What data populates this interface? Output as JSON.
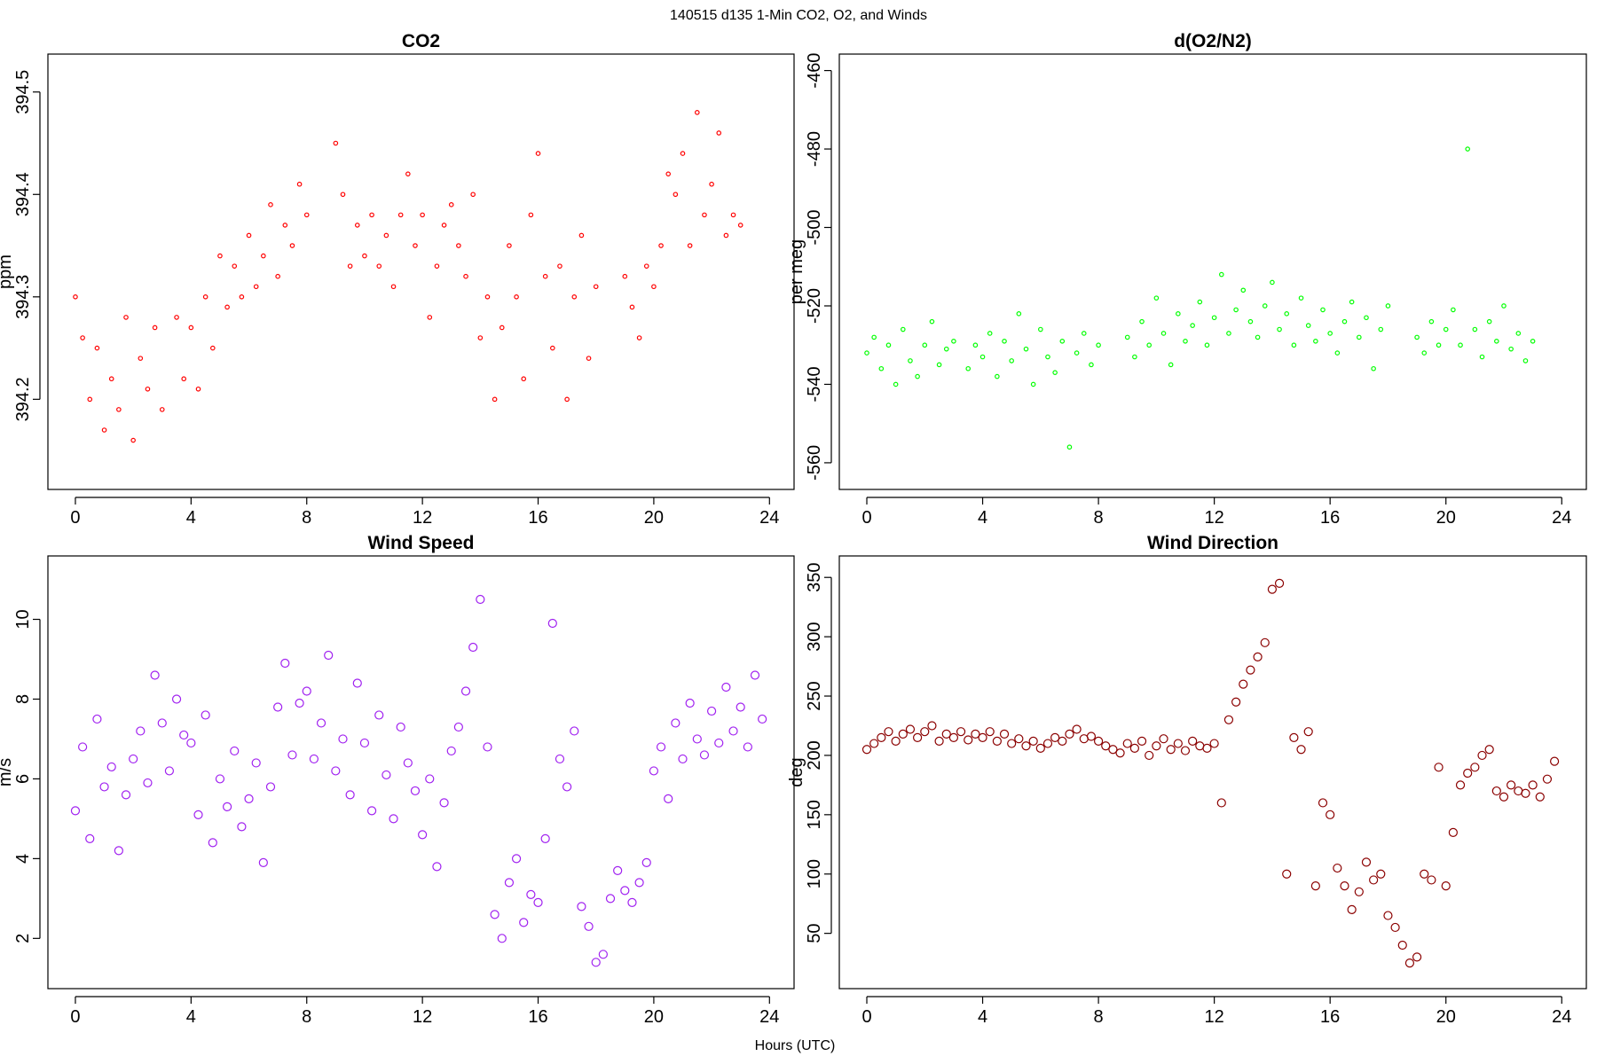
{
  "title": "140515   d135   1-Min CO2, O2, and Winds",
  "xlabel": "Hours (UTC)",
  "chart_data": [
    {
      "type": "scatter",
      "title": "CO2",
      "ylabel": "ppm",
      "color": "#ff0000",
      "marker_size": 2.2,
      "xlim": [
        -0.95,
        24.85
      ],
      "xticks": [
        0,
        4,
        8,
        12,
        16,
        20,
        24
      ],
      "ylim": [
        394.112,
        394.537
      ],
      "yticks": [
        394.2,
        394.3,
        394.4,
        394.5
      ],
      "x": [
        0,
        0.25,
        0.5,
        0.75,
        1,
        1.25,
        1.5,
        1.75,
        2,
        2.25,
        2.5,
        2.75,
        3,
        3.5,
        3.75,
        4,
        4.25,
        4.5,
        4.75,
        5,
        5.25,
        5.5,
        5.75,
        6,
        6.25,
        6.5,
        6.75,
        7,
        7.25,
        7.5,
        7.75,
        8,
        9,
        9.25,
        9.5,
        9.75,
        10,
        10.25,
        10.5,
        10.75,
        11,
        11.25,
        11.5,
        11.75,
        12,
        12.25,
        12.5,
        12.75,
        13,
        13.25,
        13.5,
        13.75,
        14,
        14.25,
        14.5,
        14.75,
        15,
        15.25,
        15.5,
        15.75,
        16,
        16.25,
        16.5,
        16.75,
        17,
        17.25,
        17.5,
        17.75,
        18,
        19,
        19.25,
        19.5,
        19.75,
        20,
        20.25,
        20.5,
        20.75,
        21,
        21.25,
        21.5,
        21.75,
        22,
        22.25,
        22.5,
        22.75,
        23
      ],
      "values": [
        394.3,
        394.26,
        394.2,
        394.25,
        394.17,
        394.22,
        394.19,
        394.28,
        394.16,
        394.24,
        394.21,
        394.27,
        394.19,
        394.28,
        394.22,
        394.27,
        394.21,
        394.3,
        394.25,
        394.34,
        394.29,
        394.33,
        394.3,
        394.36,
        394.31,
        394.34,
        394.39,
        394.32,
        394.37,
        394.35,
        394.41,
        394.38,
        394.45,
        394.4,
        394.33,
        394.37,
        394.34,
        394.38,
        394.33,
        394.36,
        394.31,
        394.38,
        394.42,
        394.35,
        394.38,
        394.28,
        394.33,
        394.37,
        394.39,
        394.35,
        394.32,
        394.4,
        394.26,
        394.3,
        394.2,
        394.27,
        394.35,
        394.3,
        394.22,
        394.38,
        394.44,
        394.32,
        394.25,
        394.33,
        394.2,
        394.3,
        394.36,
        394.24,
        394.31,
        394.32,
        394.29,
        394.26,
        394.33,
        394.31,
        394.35,
        394.42,
        394.4,
        394.44,
        394.35,
        394.48,
        394.38,
        394.41,
        394.46,
        394.36,
        394.38,
        394.37
      ]
    },
    {
      "type": "scatter",
      "title": "d(O2/N2)",
      "ylabel": "per meg",
      "color": "#00ff00",
      "marker_size": 2.2,
      "xlim": [
        -0.95,
        24.85
      ],
      "xticks": [
        0,
        4,
        8,
        12,
        16,
        20,
        24
      ],
      "ylim": [
        -566.8,
        -455.8
      ],
      "yticks": [
        -560,
        -540,
        -520,
        -500,
        -480,
        -460
      ],
      "x": [
        0,
        0.25,
        0.5,
        0.75,
        1,
        1.25,
        1.5,
        1.75,
        2,
        2.25,
        2.5,
        2.75,
        3,
        3.5,
        3.75,
        4,
        4.25,
        4.5,
        4.75,
        5,
        5.25,
        5.5,
        5.75,
        6,
        6.25,
        6.5,
        6.75,
        7,
        7.25,
        7.5,
        7.75,
        8,
        9,
        9.25,
        9.5,
        9.75,
        10,
        10.25,
        10.5,
        10.75,
        11,
        11.25,
        11.5,
        11.75,
        12,
        12.25,
        12.5,
        12.75,
        13,
        13.25,
        13.5,
        13.75,
        14,
        14.25,
        14.5,
        14.75,
        15,
        15.25,
        15.5,
        15.75,
        16,
        16.25,
        16.5,
        16.75,
        17,
        17.25,
        17.5,
        17.75,
        18,
        19,
        19.25,
        19.5,
        19.75,
        20,
        20.25,
        20.5,
        20.75,
        21,
        21.25,
        21.5,
        21.75,
        22,
        22.25,
        22.5,
        22.75,
        23
      ],
      "values": [
        -532,
        -528,
        -536,
        -530,
        -540,
        -526,
        -534,
        -538,
        -530,
        -524,
        -535,
        -531,
        -529,
        -536,
        -530,
        -533,
        -527,
        -538,
        -529,
        -534,
        -522,
        -531,
        -540,
        -526,
        -533,
        -537,
        -529,
        -556,
        -532,
        -527,
        -535,
        -530,
        -528,
        -533,
        -524,
        -530,
        -518,
        -527,
        -535,
        -522,
        -529,
        -525,
        -519,
        -530,
        -523,
        -512,
        -527,
        -521,
        -516,
        -524,
        -528,
        -520,
        -514,
        -526,
        -522,
        -530,
        -518,
        -525,
        -529,
        -521,
        -527,
        -532,
        -524,
        -519,
        -528,
        -523,
        -536,
        -526,
        -520,
        -528,
        -532,
        -524,
        -530,
        -526,
        -521,
        -530,
        -480,
        -526,
        -533,
        -524,
        -529,
        -520,
        -531,
        -527,
        -534,
        -529
      ]
    },
    {
      "type": "scatter",
      "title": "Wind Speed",
      "ylabel": "m/s",
      "color": "#a020f0",
      "marker_size": 4.5,
      "xlim": [
        -0.95,
        24.85
      ],
      "xticks": [
        0,
        4,
        8,
        12,
        16,
        20,
        24
      ],
      "ylim": [
        0.74,
        11.59
      ],
      "yticks": [
        2,
        4,
        6,
        8,
        10
      ],
      "x": [
        0,
        0.25,
        0.5,
        0.75,
        1,
        1.25,
        1.5,
        1.75,
        2,
        2.25,
        2.5,
        2.75,
        3,
        3.25,
        3.5,
        3.75,
        4,
        4.25,
        4.5,
        4.75,
        5,
        5.25,
        5.5,
        5.75,
        6,
        6.25,
        6.5,
        6.75,
        7,
        7.25,
        7.5,
        7.75,
        8,
        8.25,
        8.5,
        8.75,
        9,
        9.25,
        9.5,
        9.75,
        10,
        10.25,
        10.5,
        10.75,
        11,
        11.25,
        11.5,
        11.75,
        12,
        12.25,
        12.5,
        12.75,
        13,
        13.25,
        13.5,
        13.75,
        14,
        14.25,
        14.5,
        14.75,
        15,
        15.25,
        15.5,
        15.75,
        16,
        16.25,
        16.5,
        16.75,
        17,
        17.25,
        17.5,
        17.75,
        18,
        18.25,
        18.5,
        18.75,
        19,
        19.25,
        19.5,
        19.75,
        20,
        20.25,
        20.5,
        20.75,
        21,
        21.25,
        21.5,
        21.75,
        22,
        22.25,
        22.5,
        22.75,
        23,
        23.25,
        23.5,
        23.75
      ],
      "values": [
        5.2,
        6.8,
        4.5,
        7.5,
        5.8,
        6.3,
        4.2,
        5.6,
        6.5,
        7.2,
        5.9,
        8.6,
        7.4,
        6.2,
        8.0,
        7.1,
        6.9,
        5.1,
        7.6,
        4.4,
        6.0,
        5.3,
        6.7,
        4.8,
        5.5,
        6.4,
        3.9,
        5.8,
        7.8,
        8.9,
        6.6,
        7.9,
        8.2,
        6.5,
        7.4,
        9.1,
        6.2,
        7.0,
        5.6,
        8.4,
        6.9,
        5.2,
        7.6,
        6.1,
        5.0,
        7.3,
        6.4,
        5.7,
        4.6,
        6.0,
        3.8,
        5.4,
        6.7,
        7.3,
        8.2,
        9.3,
        10.5,
        6.8,
        2.6,
        2.0,
        3.4,
        4.0,
        2.4,
        3.1,
        2.9,
        4.5,
        9.9,
        6.5,
        5.8,
        7.2,
        2.8,
        2.3,
        1.4,
        1.6,
        3.0,
        3.7,
        3.2,
        2.9,
        3.4,
        3.9,
        6.2,
        6.8,
        5.5,
        7.4,
        6.5,
        7.9,
        7.0,
        6.6,
        7.7,
        6.9,
        8.3,
        7.2,
        7.8,
        6.8,
        8.6,
        7.5
      ]
    },
    {
      "type": "scatter",
      "title": "Wind Direction",
      "ylabel": "deg",
      "color": "#8b0000",
      "marker_size": 4.5,
      "xlim": [
        -0.95,
        24.85
      ],
      "xticks": [
        0,
        4,
        8,
        12,
        16,
        20,
        24
      ],
      "ylim": [
        3.4,
        368.1
      ],
      "yticks": [
        50,
        100,
        150,
        200,
        250,
        300,
        350
      ],
      "x": [
        0,
        0.25,
        0.5,
        0.75,
        1,
        1.25,
        1.5,
        1.75,
        2,
        2.25,
        2.5,
        2.75,
        3,
        3.25,
        3.5,
        3.75,
        4,
        4.25,
        4.5,
        4.75,
        5,
        5.25,
        5.5,
        5.75,
        6,
        6.25,
        6.5,
        6.75,
        7,
        7.25,
        7.5,
        7.75,
        8,
        8.25,
        8.5,
        8.75,
        9,
        9.25,
        9.5,
        9.75,
        10,
        10.25,
        10.5,
        10.75,
        11,
        11.25,
        11.5,
        11.75,
        12,
        12.25,
        12.5,
        12.75,
        13,
        13.25,
        13.5,
        13.75,
        14,
        14.25,
        14.5,
        14.75,
        15,
        15.25,
        15.5,
        15.75,
        16,
        16.25,
        16.5,
        16.75,
        17,
        17.25,
        17.5,
        17.75,
        18,
        18.25,
        18.5,
        18.75,
        19,
        19.25,
        19.5,
        19.75,
        20,
        20.25,
        20.5,
        20.75,
        21,
        21.25,
        21.5,
        21.75,
        22,
        22.25,
        22.5,
        22.75,
        23,
        23.25,
        23.5,
        23.75
      ],
      "values": [
        205,
        210,
        215,
        220,
        212,
        218,
        222,
        215,
        220,
        225,
        212,
        218,
        215,
        220,
        213,
        218,
        215,
        220,
        212,
        218,
        210,
        214,
        208,
        212,
        206,
        210,
        215,
        212,
        218,
        222,
        214,
        216,
        212,
        208,
        205,
        202,
        210,
        206,
        212,
        200,
        208,
        214,
        205,
        210,
        204,
        212,
        208,
        206,
        210,
        160,
        230,
        245,
        260,
        272,
        283,
        295,
        340,
        345,
        100,
        215,
        205,
        220,
        90,
        160,
        150,
        105,
        90,
        70,
        85,
        110,
        95,
        100,
        65,
        55,
        40,
        25,
        30,
        100,
        95,
        190,
        90,
        135,
        175,
        185,
        190,
        200,
        205,
        170,
        165,
        175,
        170,
        168,
        175,
        165,
        180,
        195
      ]
    }
  ]
}
